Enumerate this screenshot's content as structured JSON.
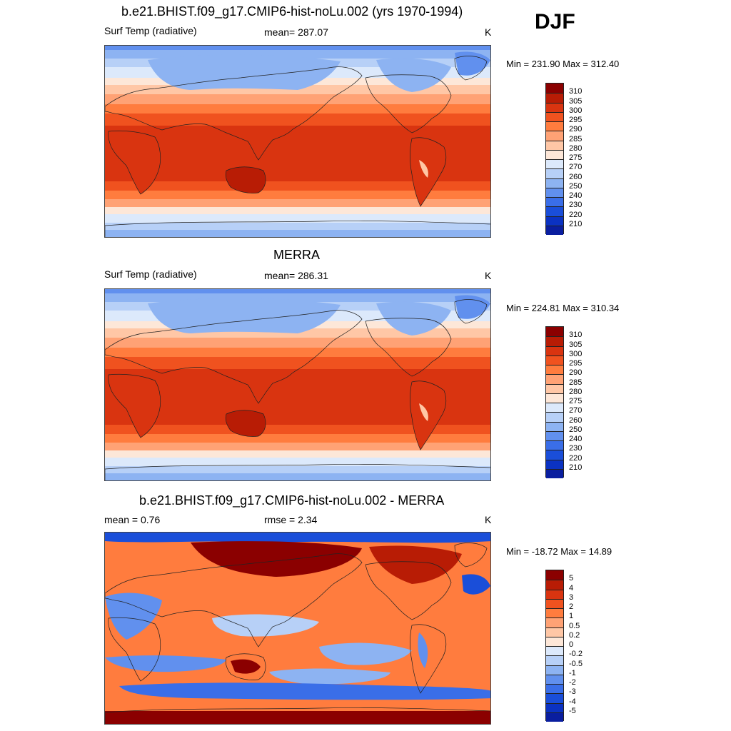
{
  "season": "DJF",
  "panels": [
    {
      "title": "b.e21.BHIST.f09_g17.CMIP6-hist-noLu.002 (yrs 1970-1994)",
      "left_label": "Surf Temp (radiative)",
      "center_label": "mean= 287.07",
      "units": "K",
      "minmax": "Min = 231.90 Max = 312.40",
      "colorbar_labels": [
        "310",
        "305",
        "300",
        "295",
        "290",
        "285",
        "280",
        "275",
        "270",
        "260",
        "250",
        "240",
        "230",
        "220",
        "210"
      ],
      "colors": [
        "#8b0000",
        "#b81c05",
        "#d93410",
        "#f0521f",
        "#ff7c3e",
        "#ffa275",
        "#ffc7a6",
        "#fde7d8",
        "#dce9fb",
        "#b7d0f7",
        "#8db3f2",
        "#6190ee",
        "#3a6ee8",
        "#1a4ed9",
        "#0b32c2",
        "#0a1e9f"
      ]
    },
    {
      "title": "MERRA",
      "left_label": "Surf Temp (radiative)",
      "center_label": "mean= 286.31",
      "units": "K",
      "minmax": "Min = 224.81 Max = 310.34",
      "colorbar_labels": [
        "310",
        "305",
        "300",
        "295",
        "290",
        "285",
        "280",
        "275",
        "270",
        "260",
        "250",
        "240",
        "230",
        "220",
        "210"
      ],
      "colors": [
        "#8b0000",
        "#b81c05",
        "#d93410",
        "#f0521f",
        "#ff7c3e",
        "#ffa275",
        "#ffc7a6",
        "#fde7d8",
        "#dce9fb",
        "#b7d0f7",
        "#8db3f2",
        "#6190ee",
        "#3a6ee8",
        "#1a4ed9",
        "#0b32c2",
        "#0a1e9f"
      ]
    },
    {
      "title": "b.e21.BHIST.f09_g17.CMIP6-hist-noLu.002 - MERRA",
      "left_label": "mean =   0.76",
      "center_label": "rmse =   2.34",
      "units": "K",
      "minmax": "Min = -18.72 Max =  14.89",
      "colorbar_labels": [
        "5",
        "4",
        "3",
        "2",
        "1",
        "0.5",
        "0.2",
        "0",
        "-0.2",
        "-0.5",
        "-1",
        "-2",
        "-3",
        "-4",
        "-5"
      ],
      "colors": [
        "#8b0000",
        "#b81c05",
        "#d93410",
        "#f0521f",
        "#ff7c3e",
        "#ffa275",
        "#ffc7a6",
        "#fde7d8",
        "#dce9fb",
        "#b7d0f7",
        "#8db3f2",
        "#6190ee",
        "#3a6ee8",
        "#1a4ed9",
        "#0b32c2",
        "#0a1e9f"
      ]
    }
  ]
}
